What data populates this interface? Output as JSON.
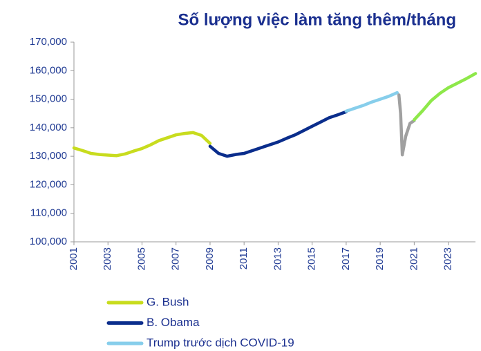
{
  "chart_data": {
    "type": "line",
    "title": "Số lượng việc làm tăng thêm/tháng",
    "xlim": [
      2001,
      2024.6
    ],
    "xticks": [
      2001,
      2003,
      2005,
      2007,
      2009,
      2011,
      2013,
      2015,
      2017,
      2019,
      2021,
      2023
    ],
    "ylim": [
      100000,
      170000
    ],
    "yticks": [
      {
        "value": 100000,
        "label": "100,000"
      },
      {
        "value": 110000,
        "label": "110,000"
      },
      {
        "value": 120000,
        "label": "120,000"
      },
      {
        "value": 130000,
        "label": "130,000"
      },
      {
        "value": 140000,
        "label": "140,000"
      },
      {
        "value": 150000,
        "label": "150,000"
      },
      {
        "value": 160000,
        "label": "160,000"
      },
      {
        "value": 170000,
        "label": "170,000"
      }
    ],
    "series": [
      {
        "name": "G. Bush",
        "color": "#c8dc1e",
        "x": [
          2001,
          2001.5,
          2002,
          2002.5,
          2003,
          2003.5,
          2004,
          2004.5,
          2005,
          2005.5,
          2006,
          2006.5,
          2007,
          2007.5,
          2008,
          2008.5,
          2009
        ],
        "values": [
          132900,
          132000,
          131000,
          130600,
          130400,
          130200,
          130800,
          131800,
          132700,
          134000,
          135500,
          136500,
          137500,
          138000,
          138300,
          137300,
          134500
        ]
      },
      {
        "name": "B. Obama",
        "color": "#0a2d8c",
        "x": [
          2009,
          2009.5,
          2010,
          2010.5,
          2011,
          2011.5,
          2012,
          2012.5,
          2013,
          2013.5,
          2014,
          2014.5,
          2015,
          2015.5,
          2016,
          2016.5,
          2017
        ],
        "values": [
          133500,
          131000,
          130000,
          130600,
          131000,
          132000,
          133000,
          134000,
          135000,
          136300,
          137500,
          139000,
          140500,
          142000,
          143500,
          144500,
          145600
        ]
      },
      {
        "name": "Trump trước dịch COVID-19",
        "color": "#87ceeb",
        "x": [
          2017,
          2017.5,
          2018,
          2018.5,
          2019,
          2019.5,
          2020
        ],
        "values": [
          145800,
          146800,
          147800,
          149000,
          150000,
          151000,
          152300
        ]
      },
      {
        "color": "#a0a0a0",
        "x": [
          2020.1,
          2020.2,
          2020.3,
          2020.5,
          2020.75,
          2021
        ],
        "values": [
          151500,
          145000,
          130500,
          137000,
          141500,
          142500
        ]
      },
      {
        "color": "#8ee84a",
        "x": [
          2021,
          2021.5,
          2022,
          2022.5,
          2023,
          2023.5,
          2024,
          2024.6
        ],
        "values": [
          142800,
          146000,
          149500,
          152000,
          154000,
          155500,
          157000,
          159000
        ]
      }
    ]
  }
}
